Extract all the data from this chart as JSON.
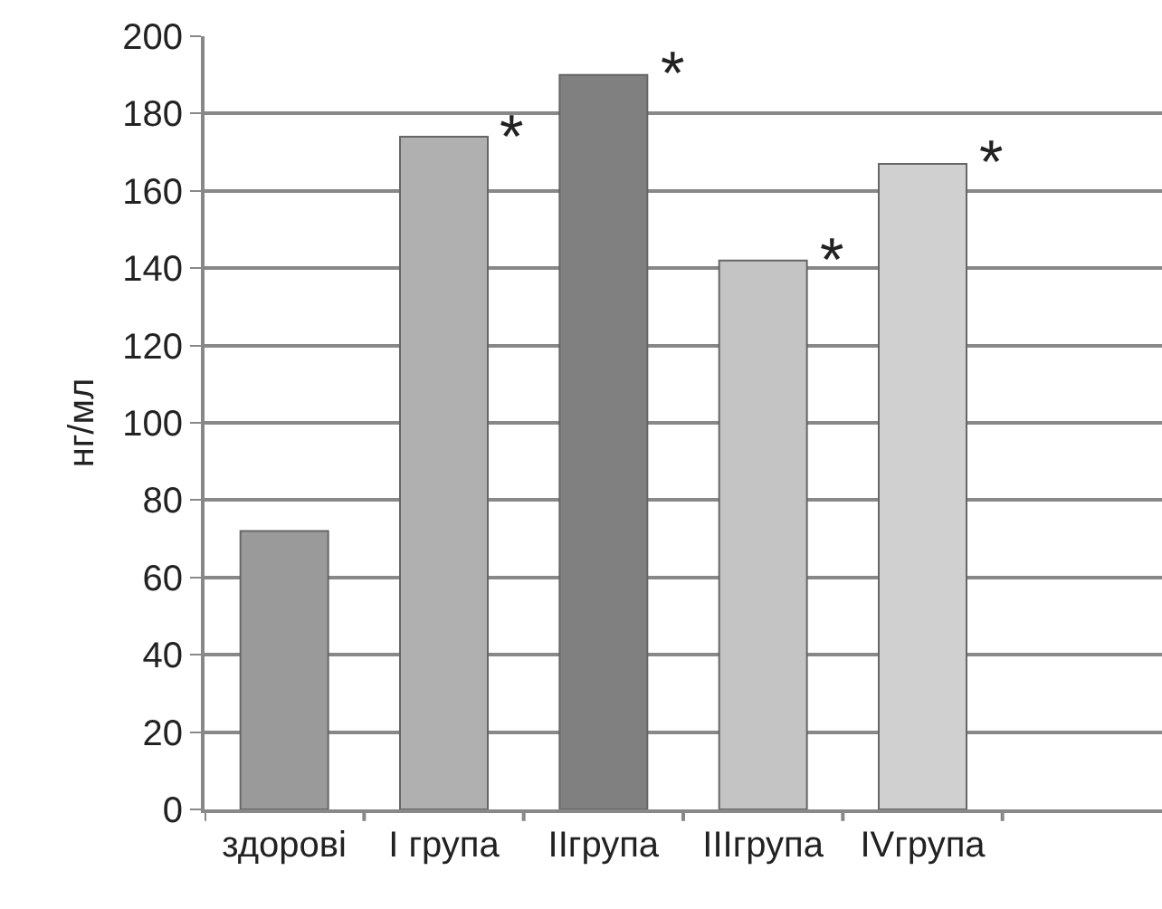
{
  "chart_data": {
    "type": "bar",
    "ylabel": "нг/мл",
    "categories": [
      "здорові",
      "I група",
      "IIгрупа",
      "IIIгрупа",
      "IVгрупа",
      null
    ],
    "values": [
      72,
      174,
      190,
      142,
      167,
      null
    ],
    "colors": [
      "#9a9a9a",
      "#b0b0b0",
      "#808080",
      "#c4c4c4",
      "#d0d0d0",
      "#999999"
    ],
    "ylim": [
      0,
      200
    ],
    "yticks": [
      0,
      20,
      40,
      60,
      80,
      100,
      120,
      140,
      160,
      180,
      200
    ],
    "grid": "y",
    "annotations": [
      {
        "text": "*",
        "x": "I група",
        "y": 174
      },
      {
        "text": "*",
        "x": "IIгрупа",
        "y": 190
      },
      {
        "text": "*",
        "x": "IIIгрупа",
        "y": 142
      },
      {
        "text": "*",
        "x": "IVгрупа",
        "y": 167
      }
    ]
  }
}
